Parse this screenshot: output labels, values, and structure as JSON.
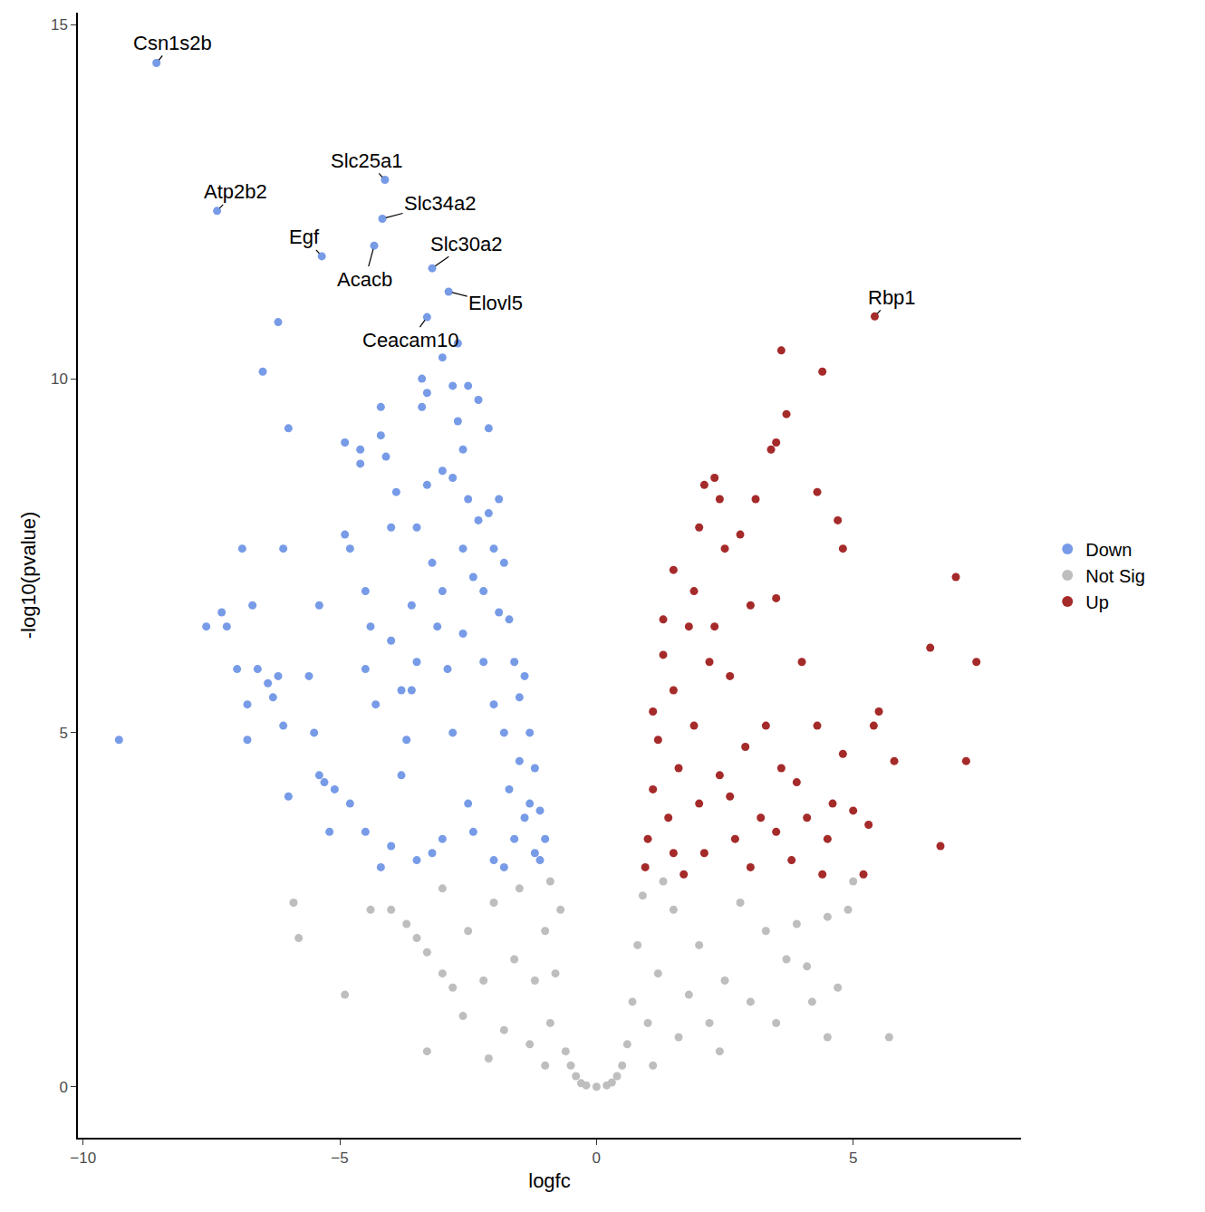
{
  "chart_data": {
    "type": "scatter",
    "x_label": "logfc",
    "y_label": "-log10(pvalue)",
    "xlim": [
      -10.1,
      8.27
    ],
    "ylim": [
      -0.72,
      15.17
    ],
    "xticks": [
      {
        "value": -10,
        "label": "−10"
      },
      {
        "value": -5,
        "label": "−5"
      },
      0,
      5
    ],
    "yticks": [
      0,
      5,
      10,
      15
    ],
    "grid": false,
    "legend": "right",
    "marker": "circle",
    "series": [
      {
        "name": "Down",
        "color": "#779BE7",
        "x": [
          -8.57,
          -7.39,
          -4.12,
          -4.17,
          -5.35,
          -4.33,
          -3.2,
          -2.88,
          -3.3,
          -9.3,
          -7.6,
          -7.3,
          -7.2,
          -7.0,
          -6.9,
          -6.8,
          -6.8,
          -6.7,
          -6.5,
          -6.6,
          -6.4,
          -6.3,
          -6.2,
          -6.2,
          -6.1,
          -6.1,
          -6.0,
          -6.0,
          -5.6,
          -5.5,
          -5.4,
          -5.4,
          -5.3,
          -5.2,
          -5.1,
          -4.9,
          -4.9,
          -4.8,
          -4.8,
          -4.6,
          -4.6,
          -4.5,
          -4.5,
          -4.4,
          -4.3,
          -4.2,
          -4.2,
          -4.1,
          -4.0,
          -4.0,
          -3.9,
          -3.8,
          -3.7,
          -3.6,
          -3.5,
          -3.5,
          -3.4,
          -3.4,
          -3.3,
          -3.3,
          -3.2,
          -3.1,
          -3.0,
          -3.0,
          -3.0,
          -2.9,
          -2.8,
          -2.8,
          -2.7,
          -2.7,
          -2.6,
          -2.6,
          -2.5,
          -2.5,
          -2.4,
          -2.3,
          -2.3,
          -2.2,
          -2.2,
          -2.1,
          -2.1,
          -2.0,
          -2.0,
          -1.9,
          -1.9,
          -1.8,
          -1.8,
          -1.7,
          -1.7,
          -1.6,
          -1.6,
          -1.5,
          -1.5,
          -1.4,
          -1.4,
          -1.3,
          -1.3,
          -1.2,
          -1.2,
          -1.1,
          -1.1,
          -1.0,
          -2.5,
          -3.0,
          -3.5,
          -4.0,
          -4.5,
          -3.8,
          -2.8,
          -2.0,
          -2.4,
          -1.8,
          -3.2,
          -4.2,
          -3.6,
          -2.6
        ],
        "values": [
          14.46,
          12.37,
          12.81,
          12.26,
          11.73,
          11.88,
          11.56,
          11.23,
          10.87,
          4.9,
          6.5,
          6.7,
          6.5,
          5.9,
          7.6,
          5.4,
          4.9,
          6.8,
          10.1,
          5.9,
          5.7,
          5.5,
          10.8,
          5.8,
          7.6,
          5.1,
          9.3,
          4.1,
          5.8,
          5.0,
          6.8,
          4.4,
          4.3,
          3.6,
          4.2,
          9.1,
          7.8,
          7.6,
          4.0,
          9.0,
          8.8,
          5.9,
          7.0,
          6.5,
          5.4,
          9.6,
          9.2,
          8.9,
          7.9,
          6.3,
          8.4,
          5.6,
          4.9,
          6.8,
          7.9,
          6.0,
          10.0,
          9.6,
          9.8,
          8.5,
          7.4,
          6.5,
          10.3,
          8.7,
          7.0,
          5.9,
          9.9,
          8.6,
          10.5,
          9.4,
          9.0,
          7.6,
          9.9,
          8.3,
          7.2,
          9.7,
          8.0,
          7.0,
          6.0,
          9.3,
          8.1,
          7.6,
          5.4,
          8.3,
          6.7,
          7.4,
          5.0,
          6.6,
          4.2,
          6.0,
          3.5,
          5.5,
          4.6,
          5.8,
          3.8,
          5.0,
          4.0,
          4.5,
          3.3,
          3.9,
          3.2,
          3.5,
          4.0,
          3.5,
          3.2,
          3.4,
          3.6,
          4.4,
          5.0,
          3.2,
          3.6,
          3.1,
          3.3,
          3.1,
          5.6,
          6.4
        ]
      },
      {
        "name": "Not Sig",
        "color": "#BEBEBE",
        "x": [
          -5.9,
          -5.8,
          -4.4,
          -4.0,
          -3.7,
          -3.5,
          -3.3,
          -3.0,
          -3.0,
          -2.8,
          -2.6,
          -2.5,
          -2.2,
          -2.0,
          -1.8,
          -1.6,
          -1.5,
          -1.3,
          -1.2,
          -1.0,
          -0.9,
          -0.8,
          -0.7,
          -0.6,
          -0.5,
          -0.4,
          -0.3,
          -0.2,
          0,
          0.2,
          0.3,
          0.4,
          0.5,
          0.6,
          0.7,
          0.8,
          0.9,
          1.0,
          1.2,
          1.5,
          1.6,
          1.8,
          2.0,
          2.2,
          2.5,
          2.8,
          3.0,
          3.3,
          3.5,
          3.7,
          3.9,
          4.1,
          4.2,
          4.5,
          4.5,
          4.7,
          4.9,
          5.0,
          5.7,
          -3.3,
          -2.1,
          -4.9,
          -1.0,
          1.1,
          2.4,
          -0.9,
          1.3
        ],
        "values": [
          2.6,
          2.1,
          2.5,
          2.5,
          2.3,
          2.1,
          1.9,
          1.6,
          2.8,
          1.4,
          1.0,
          2.2,
          1.5,
          2.6,
          0.8,
          1.8,
          2.8,
          0.6,
          1.5,
          2.2,
          0.9,
          1.6,
          2.5,
          0.5,
          0.3,
          0.15,
          0.05,
          0.02,
          0,
          0.02,
          0.06,
          0.15,
          0.3,
          0.6,
          1.2,
          2.0,
          2.7,
          0.9,
          1.6,
          2.5,
          0.7,
          1.3,
          2.0,
          0.9,
          1.5,
          2.6,
          1.2,
          2.2,
          0.9,
          1.8,
          2.3,
          1.7,
          1.2,
          2.4,
          0.7,
          1.4,
          2.5,
          2.9,
          0.7,
          0.5,
          0.4,
          1.3,
          0.3,
          0.3,
          0.5,
          2.9,
          2.9
        ]
      },
      {
        "name": "Up",
        "color": "#A52A2A",
        "x": [
          5.42,
          3.6,
          4.4,
          3.7,
          3.4,
          3.5,
          2.3,
          2.1,
          2.4,
          3.1,
          4.3,
          4.7,
          4.8,
          7.0,
          6.5,
          7.4,
          5.5,
          5.4,
          5.8,
          7.2,
          5.3,
          6.7,
          5.0,
          5.2,
          4.4,
          2.0,
          2.5,
          2.8,
          3.5,
          3.0,
          1.5,
          1.8,
          2.2,
          2.6,
          4.0,
          4.3,
          3.9,
          4.8,
          3.3,
          2.9,
          3.6,
          4.5,
          4.6,
          3.2,
          2.4,
          1.9,
          1.5,
          1.3,
          1.2,
          1.1,
          1.0,
          0.95,
          1.4,
          1.6,
          2.1,
          2.7,
          3.0,
          3.8,
          1.7,
          1.3,
          1.9,
          2.3,
          2.0,
          1.1,
          1.5,
          2.6,
          3.5,
          4.1
        ],
        "values": [
          10.88,
          10.4,
          10.1,
          9.5,
          9.0,
          9.1,
          8.6,
          8.5,
          8.3,
          8.3,
          8.4,
          8.0,
          7.6,
          7.2,
          6.2,
          6.0,
          5.3,
          5.1,
          4.6,
          4.6,
          3.7,
          3.4,
          3.9,
          3.0,
          3.0,
          7.9,
          7.6,
          7.8,
          6.9,
          6.8,
          7.3,
          6.5,
          6.0,
          5.8,
          6.0,
          5.1,
          4.3,
          4.7,
          5.1,
          4.8,
          4.5,
          3.5,
          4.0,
          3.8,
          4.4,
          5.1,
          5.6,
          6.1,
          4.9,
          4.2,
          3.5,
          3.1,
          3.8,
          4.5,
          3.3,
          3.5,
          3.1,
          3.2,
          3.0,
          6.6,
          7.0,
          6.5,
          4.0,
          5.3,
          3.3,
          4.1,
          3.6,
          3.8
        ]
      }
    ],
    "annotations": [
      {
        "text": "Csn1s2b",
        "x": -8.57,
        "y": 14.46
      },
      {
        "text": "Atp2b2",
        "x": -7.39,
        "y": 12.37
      },
      {
        "text": "Slc25a1",
        "x": -4.12,
        "y": 12.81
      },
      {
        "text": "Slc34a2",
        "x": -4.17,
        "y": 12.26
      },
      {
        "text": "Egf",
        "x": -5.35,
        "y": 11.73
      },
      {
        "text": "Acacb",
        "x": -4.33,
        "y": 11.88
      },
      {
        "text": "Slc30a2",
        "x": -3.2,
        "y": 11.56
      },
      {
        "text": "Elovl5",
        "x": -2.88,
        "y": 11.23
      },
      {
        "text": "Ceacam10",
        "x": -3.3,
        "y": 10.87
      },
      {
        "text": "Rbp1",
        "x": 5.42,
        "y": 10.88
      }
    ]
  }
}
